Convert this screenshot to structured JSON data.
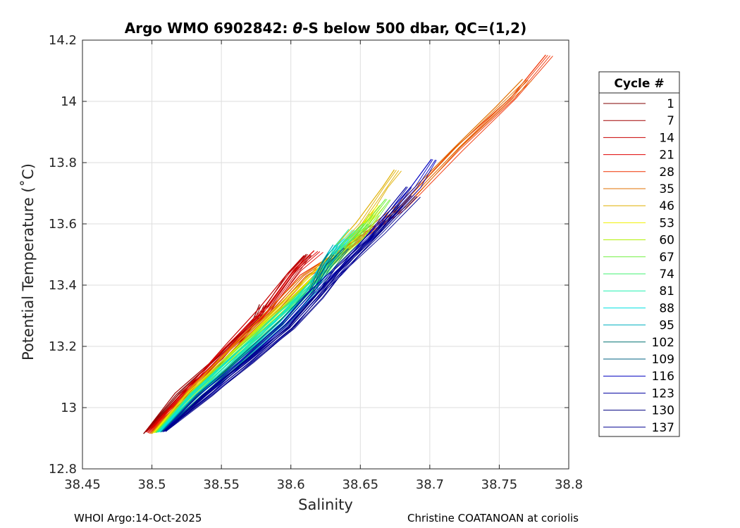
{
  "chart_data": {
    "type": "line",
    "title_prefix": "Argo WMO 6902842: ",
    "title_theta": "θ",
    "title_suffix": "-S below 500 dbar,  QC=(1,2)",
    "xlabel": "Salinity",
    "ylabel": "Potential Temperature (˚C)",
    "xlim": [
      38.45,
      38.8
    ],
    "ylim": [
      12.8,
      14.2
    ],
    "xticks": [
      "38.45",
      "38.5",
      "38.55",
      "38.6",
      "38.65",
      "38.7",
      "38.75",
      "38.8"
    ],
    "yticks": [
      "12.8",
      "13",
      "13.2",
      "13.4",
      "13.6",
      "13.8",
      "14",
      "14.2"
    ],
    "grid": true,
    "legend": {
      "title": "Cycle #",
      "placement": "right",
      "entries": [
        {
          "label": "1",
          "color": "#800000"
        },
        {
          "label": "7",
          "color": "#a00000"
        },
        {
          "label": "14",
          "color": "#c80000"
        },
        {
          "label": "21",
          "color": "#e00000"
        },
        {
          "label": "28",
          "color": "#f03000"
        },
        {
          "label": "35",
          "color": "#e07000"
        },
        {
          "label": "46",
          "color": "#e0b000"
        },
        {
          "label": "53",
          "color": "#f0f000"
        },
        {
          "label": "60",
          "color": "#b0f000"
        },
        {
          "label": "67",
          "color": "#70f040"
        },
        {
          "label": "74",
          "color": "#40f070"
        },
        {
          "label": "81",
          "color": "#20f0b0"
        },
        {
          "label": "88",
          "color": "#00e0e0"
        },
        {
          "label": "95",
          "color": "#00b0c0"
        },
        {
          "label": "102",
          "color": "#007070"
        },
        {
          "label": "109",
          "color": "#006080"
        },
        {
          "label": "116",
          "color": "#0000c0"
        },
        {
          "label": "123",
          "color": "#0000a0"
        },
        {
          "label": "130",
          "color": "#000080"
        },
        {
          "label": "137",
          "color": "#000090"
        }
      ]
    },
    "series": [
      {
        "cycle": 1,
        "color": "#800000",
        "points": [
          [
            38.494,
            12.915
          ],
          [
            38.52,
            13.04
          ],
          [
            38.55,
            13.16
          ],
          [
            38.575,
            13.29
          ],
          [
            38.58,
            13.335
          ]
        ]
      },
      {
        "cycle": 7,
        "color": "#a00000",
        "points": [
          [
            38.495,
            12.92
          ],
          [
            38.52,
            13.045
          ],
          [
            38.55,
            13.17
          ],
          [
            38.58,
            13.3
          ],
          [
            38.6,
            13.43
          ],
          [
            38.613,
            13.5
          ]
        ]
      },
      {
        "cycle": 14,
        "color": "#c80000",
        "points": [
          [
            38.496,
            12.92
          ],
          [
            38.525,
            13.05
          ],
          [
            38.555,
            13.2
          ],
          [
            38.58,
            13.32
          ],
          [
            38.6,
            13.44
          ],
          [
            38.612,
            13.495
          ]
        ]
      },
      {
        "cycle": 21,
        "color": "#e00000",
        "points": [
          [
            38.497,
            12.918
          ],
          [
            38.525,
            13.05
          ],
          [
            38.555,
            13.19
          ],
          [
            38.585,
            13.33
          ],
          [
            38.605,
            13.45
          ],
          [
            38.62,
            13.51
          ]
        ]
      },
      {
        "cycle": 28,
        "color": "#f03000",
        "points": [
          [
            38.498,
            12.916
          ],
          [
            38.53,
            13.06
          ],
          [
            38.56,
            13.2
          ],
          [
            38.59,
            13.33
          ],
          [
            38.61,
            13.43
          ],
          [
            38.64,
            13.52
          ],
          [
            38.68,
            13.65
          ],
          [
            38.72,
            13.84
          ],
          [
            38.76,
            14.01
          ],
          [
            38.786,
            14.15
          ]
        ]
      },
      {
        "cycle": 35,
        "color": "#e07000",
        "points": [
          [
            38.499,
            12.915
          ],
          [
            38.53,
            13.06
          ],
          [
            38.56,
            13.2
          ],
          [
            38.59,
            13.33
          ],
          [
            38.61,
            13.43
          ],
          [
            38.64,
            13.52
          ],
          [
            38.68,
            13.66
          ],
          [
            38.72,
            13.85
          ],
          [
            38.75,
            13.98
          ],
          [
            38.77,
            14.07
          ]
        ]
      },
      {
        "cycle": 46,
        "color": "#e0b000",
        "points": [
          [
            38.5,
            12.915
          ],
          [
            38.53,
            13.06
          ],
          [
            38.56,
            13.19
          ],
          [
            38.59,
            13.32
          ],
          [
            38.62,
            13.45
          ],
          [
            38.65,
            13.6
          ],
          [
            38.668,
            13.72
          ],
          [
            38.677,
            13.775
          ]
        ]
      },
      {
        "cycle": 53,
        "color": "#f0f000",
        "points": [
          [
            38.501,
            12.917
          ],
          [
            38.53,
            13.05
          ],
          [
            38.56,
            13.18
          ],
          [
            38.59,
            13.31
          ],
          [
            38.62,
            13.44
          ],
          [
            38.65,
            13.58
          ],
          [
            38.665,
            13.66
          ]
        ]
      },
      {
        "cycle": 60,
        "color": "#b0f000",
        "points": [
          [
            38.502,
            12.918
          ],
          [
            38.53,
            13.05
          ],
          [
            38.56,
            13.18
          ],
          [
            38.59,
            13.3
          ],
          [
            38.62,
            13.43
          ],
          [
            38.65,
            13.56
          ],
          [
            38.66,
            13.63
          ]
        ]
      },
      {
        "cycle": 67,
        "color": "#70f040",
        "points": [
          [
            38.503,
            12.918
          ],
          [
            38.53,
            13.04
          ],
          [
            38.56,
            13.17
          ],
          [
            38.59,
            13.3
          ],
          [
            38.62,
            13.42
          ],
          [
            38.65,
            13.56
          ],
          [
            38.67,
            13.68
          ]
        ]
      },
      {
        "cycle": 74,
        "color": "#40f070",
        "points": [
          [
            38.503,
            12.919
          ],
          [
            38.53,
            13.04
          ],
          [
            38.56,
            13.17
          ],
          [
            38.59,
            13.29
          ],
          [
            38.62,
            13.42
          ],
          [
            38.64,
            13.54
          ],
          [
            38.655,
            13.6
          ]
        ]
      },
      {
        "cycle": 81,
        "color": "#20f0b0",
        "points": [
          [
            38.504,
            12.919
          ],
          [
            38.53,
            13.04
          ],
          [
            38.56,
            13.16
          ],
          [
            38.59,
            13.29
          ],
          [
            38.62,
            13.41
          ],
          [
            38.635,
            13.53
          ],
          [
            38.645,
            13.58
          ]
        ]
      },
      {
        "cycle": 88,
        "color": "#00e0e0",
        "points": [
          [
            38.505,
            12.92
          ],
          [
            38.53,
            13.04
          ],
          [
            38.56,
            13.16
          ],
          [
            38.59,
            13.28
          ],
          [
            38.615,
            13.4
          ],
          [
            38.63,
            13.5
          ],
          [
            38.64,
            13.55
          ]
        ]
      },
      {
        "cycle": 95,
        "color": "#00b0c0",
        "points": [
          [
            38.506,
            12.92
          ],
          [
            38.535,
            13.04
          ],
          [
            38.565,
            13.16
          ],
          [
            38.595,
            13.28
          ],
          [
            38.615,
            13.38
          ],
          [
            38.625,
            13.48
          ],
          [
            38.633,
            13.53
          ]
        ]
      },
      {
        "cycle": 102,
        "color": "#007070",
        "points": [
          [
            38.507,
            12.921
          ],
          [
            38.535,
            13.04
          ],
          [
            38.565,
            13.16
          ],
          [
            38.595,
            13.28
          ],
          [
            38.615,
            13.38
          ],
          [
            38.625,
            13.47
          ],
          [
            38.63,
            13.5
          ]
        ]
      },
      {
        "cycle": 109,
        "color": "#006080",
        "points": [
          [
            38.507,
            12.921
          ],
          [
            38.535,
            13.04
          ],
          [
            38.565,
            13.15
          ],
          [
            38.595,
            13.27
          ],
          [
            38.615,
            13.37
          ],
          [
            38.628,
            13.46
          ],
          [
            38.64,
            13.52
          ]
        ]
      },
      {
        "cycle": 116,
        "color": "#0000c0",
        "points": [
          [
            38.508,
            12.921
          ],
          [
            38.535,
            13.03
          ],
          [
            38.565,
            13.15
          ],
          [
            38.595,
            13.27
          ],
          [
            38.615,
            13.37
          ],
          [
            38.63,
            13.44
          ],
          [
            38.66,
            13.57
          ],
          [
            38.69,
            13.72
          ],
          [
            38.703,
            13.81
          ]
        ]
      },
      {
        "cycle": 123,
        "color": "#0000a0",
        "points": [
          [
            38.508,
            12.922
          ],
          [
            38.54,
            13.04
          ],
          [
            38.57,
            13.15
          ],
          [
            38.6,
            13.27
          ],
          [
            38.62,
            13.37
          ],
          [
            38.635,
            13.44
          ],
          [
            38.66,
            13.57
          ],
          [
            38.685,
            13.72
          ]
        ]
      },
      {
        "cycle": 130,
        "color": "#000080",
        "points": [
          [
            38.509,
            12.922
          ],
          [
            38.54,
            13.04
          ],
          [
            38.57,
            13.15
          ],
          [
            38.6,
            13.26
          ],
          [
            38.62,
            13.36
          ],
          [
            38.635,
            13.45
          ],
          [
            38.66,
            13.56
          ],
          [
            38.68,
            13.66
          ]
        ]
      },
      {
        "cycle": 137,
        "color": "#000090",
        "points": [
          [
            38.51,
            12.922
          ],
          [
            38.54,
            13.04
          ],
          [
            38.57,
            13.15
          ],
          [
            38.6,
            13.26
          ],
          [
            38.62,
            13.36
          ],
          [
            38.635,
            13.44
          ],
          [
            38.665,
            13.57
          ],
          [
            38.69,
            13.69
          ]
        ]
      }
    ]
  },
  "footer": {
    "left": "WHOI Argo:14-Oct-2025",
    "right": "Christine COATANOAN at coriolis"
  }
}
